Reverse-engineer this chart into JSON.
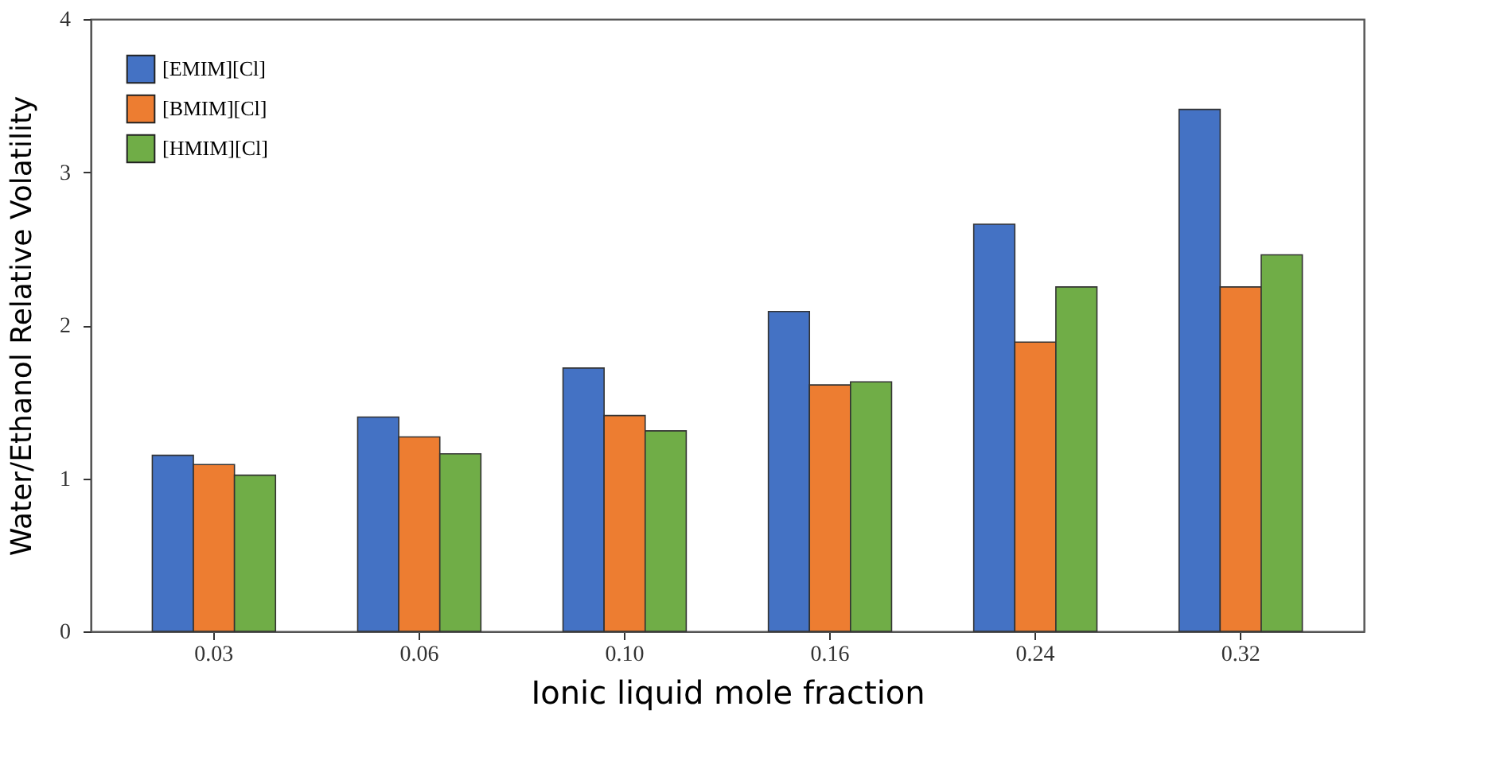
{
  "chart_data": {
    "type": "bar",
    "xlabel": "Ionic liquid mole fraction",
    "ylabel": "Water/Ethanol Relative Volatility",
    "categories": [
      "0.03",
      "0.06",
      "0.10",
      "0.16",
      "0.24",
      "0.32"
    ],
    "series": [
      {
        "name": "[EMIM][Cl]",
        "color": "#4472c4",
        "values": [
          1.15,
          1.4,
          1.72,
          2.09,
          2.66,
          3.41
        ]
      },
      {
        "name": "[BMIM][Cl]",
        "color": "#ed7d31",
        "values": [
          1.09,
          1.27,
          1.41,
          1.61,
          1.89,
          2.25
        ]
      },
      {
        "name": "[HMIM][Cl]",
        "color": "#70ad47",
        "values": [
          1.02,
          1.16,
          1.31,
          1.63,
          2.25,
          2.46
        ]
      }
    ],
    "ylim": [
      0,
      4
    ],
    "yticks": [
      0,
      1,
      2,
      3,
      4
    ],
    "grid": false,
    "legend": "top left"
  }
}
